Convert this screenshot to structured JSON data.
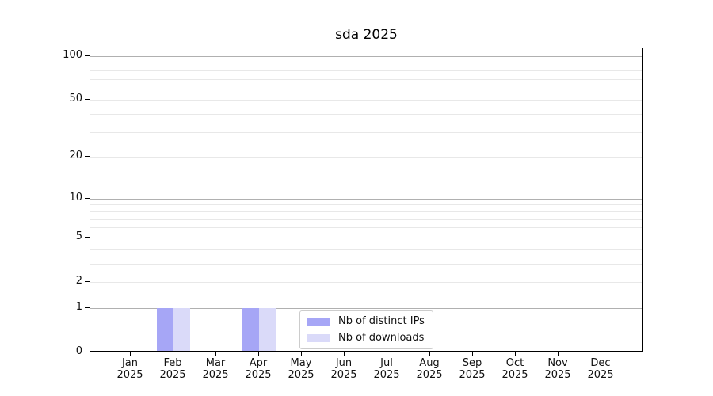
{
  "chart_data": {
    "type": "bar",
    "title": "sda 2025",
    "categories": [
      "Jan",
      "Feb",
      "Mar",
      "Apr",
      "May",
      "Jun",
      "Jul",
      "Aug",
      "Sep",
      "Oct",
      "Nov",
      "Dec"
    ],
    "year_label": "2025",
    "series": [
      {
        "name": "Nb of distinct IPs",
        "color": "#a6a6f6",
        "values": [
          0,
          1,
          0,
          1,
          0,
          0,
          0,
          0,
          0,
          0,
          0,
          0
        ]
      },
      {
        "name": "Nb of downloads",
        "color": "#dadaf9",
        "values": [
          0,
          1,
          0,
          1,
          0,
          0,
          0,
          0,
          0,
          0,
          0,
          0
        ]
      }
    ],
    "yscale": "log1p",
    "ylim": [
      0,
      115
    ],
    "yticks": [
      0,
      1,
      2,
      5,
      10,
      20,
      50,
      100
    ],
    "gridlines_major": [
      1,
      10,
      100
    ],
    "gridlines_minor": [
      2,
      3,
      4,
      5,
      6,
      7,
      8,
      9,
      20,
      30,
      40,
      50,
      60,
      70,
      80,
      90
    ],
    "grid_major_color": "#b0b0b0",
    "grid_minor_color": "#e8e8e8",
    "legend_position": "lower center",
    "xlabel": "",
    "ylabel": ""
  }
}
